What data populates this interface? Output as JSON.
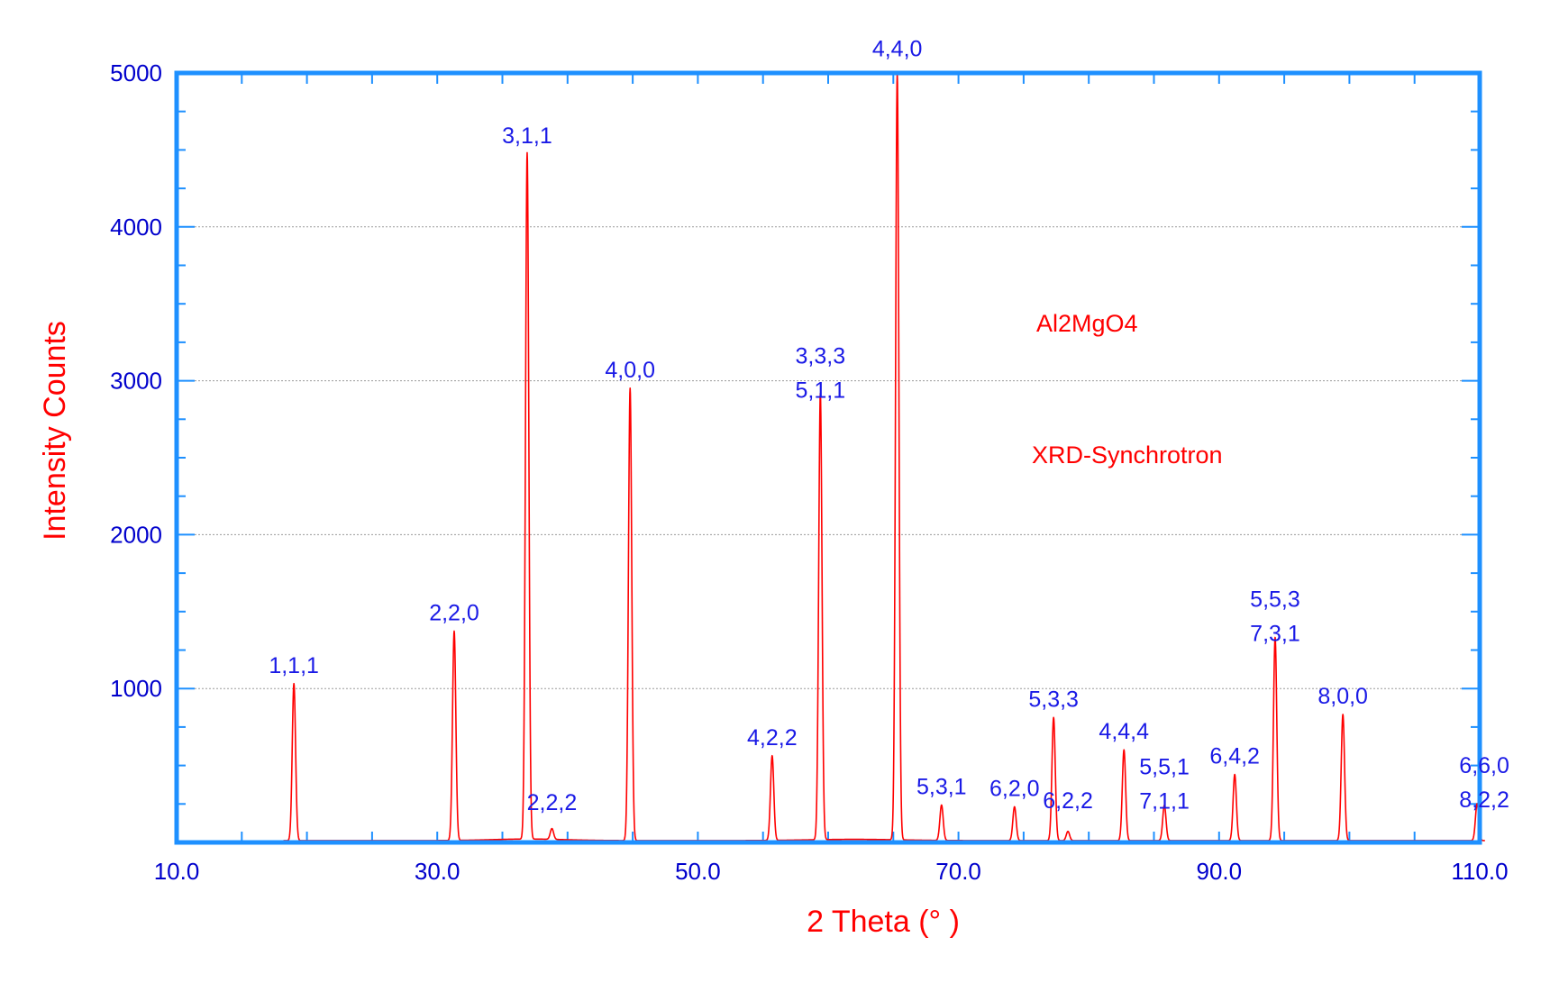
{
  "colors": {
    "frame": "#1e90ff",
    "tick_label": "#0000cc",
    "peak_label": "#1a1ae6",
    "series": "#ff0000",
    "axis_title": "#ff0000",
    "gridline": "#9a9a9a"
  },
  "chart_data": {
    "type": "line",
    "title": "",
    "xlabel": "2 Theta (° )",
    "ylabel": "Intensity Counts",
    "xlim": [
      10.0,
      110.0
    ],
    "ylim": [
      0,
      5000
    ],
    "x_ticks": [
      "10.0",
      "30.0",
      "50.0",
      "70.0",
      "90.0",
      "110.0"
    ],
    "y_ticks": [
      "1000",
      "2000",
      "3000",
      "4000",
      "5000"
    ],
    "grid": {
      "horizontal": true,
      "vertical": false
    },
    "annotations": [
      "Al2MgO4",
      "XRD-Synchrotron"
    ],
    "series": [
      {
        "peaks": [
          {
            "x": 19.0,
            "y": 1020,
            "label": "1,1,1"
          },
          {
            "x": 31.3,
            "y": 1360,
            "label": "2,2,0"
          },
          {
            "x": 36.9,
            "y": 4460,
            "label": "3,1,1"
          },
          {
            "x": 38.8,
            "y": 70,
            "label": "2,2,2"
          },
          {
            "x": 44.8,
            "y": 2940,
            "label": "4,0,0"
          },
          {
            "x": 55.7,
            "y": 550,
            "label": "4,2,2"
          },
          {
            "x": 59.4,
            "y": 2900,
            "label": "3,3,3\n5,1,1"
          },
          {
            "x": 65.3,
            "y": 4980,
            "label": "4,4,0"
          },
          {
            "x": 68.7,
            "y": 230,
            "label": "5,3,1"
          },
          {
            "x": 74.3,
            "y": 220,
            "label": "6,2,0"
          },
          {
            "x": 77.3,
            "y": 800,
            "label": "5,3,3"
          },
          {
            "x": 78.4,
            "y": 60,
            "label": "6,2,2"
          },
          {
            "x": 82.7,
            "y": 590,
            "label": "4,4,4"
          },
          {
            "x": 85.8,
            "y": 230,
            "label": "5,5,1\n7,1,1"
          },
          {
            "x": 91.2,
            "y": 430,
            "label": "6,4,2"
          },
          {
            "x": 94.3,
            "y": 1320,
            "label": "5,5,3\n7,3,1"
          },
          {
            "x": 99.5,
            "y": 820,
            "label": "8,0,0"
          },
          {
            "x": 109.8,
            "y": 240,
            "label": "6,6,0\n8,2,2"
          }
        ]
      }
    ]
  }
}
